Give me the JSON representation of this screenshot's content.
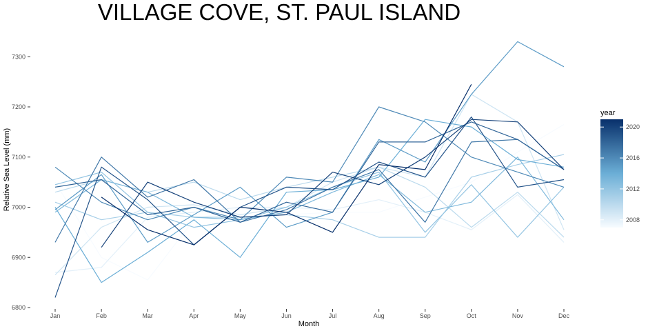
{
  "chart_data": {
    "type": "line",
    "title": "VILLAGE COVE, ST. PAUL ISLAND",
    "xlabel": "Month",
    "ylabel": "Relative Sea Level (mm)",
    "categories": [
      "Jan",
      "Feb",
      "Mar",
      "Apr",
      "May",
      "Jun",
      "Jul",
      "Aug",
      "Sep",
      "Oct",
      "Nov",
      "Dec"
    ],
    "ylim": [
      6800,
      7330
    ],
    "yticks": [
      6800,
      6900,
      7000,
      7100,
      7200,
      7300
    ],
    "grid": false,
    "legend": {
      "title": "year",
      "position": "right",
      "ticks": [
        2008,
        2012,
        2016,
        2020
      ],
      "range": [
        2007,
        2021
      ],
      "color_low": "#f7fbff",
      "color_high": "#08306b"
    },
    "series": [
      {
        "year": 2007,
        "values": [
          7050,
          6900,
          6855,
          6975,
          7000,
          6985,
          6990,
          6990,
          7020,
          7050,
          7110,
          7165
        ]
      },
      {
        "year": 2008,
        "values": [
          6870,
          6880,
          6980,
          6990,
          7000,
          7000,
          6995,
          7015,
          6990,
          6955,
          7025,
          6930
        ]
      },
      {
        "year": 2009,
        "values": [
          6865,
          6960,
          7000,
          7005,
          6985,
          7000,
          7050,
          7080,
          7060,
          7225,
          7170,
          6955
        ]
      },
      {
        "year": 2010,
        "values": [
          7030,
          7055,
          7030,
          7050,
          7015,
          7040,
          7060,
          7080,
          7040,
          6960,
          7030,
          6940
        ]
      },
      {
        "year": 2011,
        "values": [
          7010,
          6975,
          6990,
          6980,
          6980,
          6985,
          6975,
          6940,
          6940,
          7060,
          7085,
          7105
        ]
      },
      {
        "year": 2012,
        "values": [
          7045,
          7070,
          6990,
          6960,
          6975,
          7000,
          7040,
          7070,
          6950,
          7045,
          6940,
          7040
        ]
      },
      {
        "year": 2013,
        "values": [
          6990,
          7055,
          7030,
          6980,
          6975,
          6990,
          7030,
          7065,
          6990,
          7010,
          7100,
          6975
        ]
      },
      {
        "year": 2014,
        "values": [
          7000,
          6850,
          6910,
          6975,
          6900,
          7030,
          7035,
          7060,
          7175,
          7160,
          7095,
          7080
        ]
      },
      {
        "year": 2015,
        "values": [
          6995,
          7065,
          6930,
          6985,
          7040,
          6960,
          6990,
          7135,
          7090,
          7225,
          7330,
          7280
        ]
      },
      {
        "year": 2016,
        "values": [
          7080,
          7010,
          6975,
          7000,
          6975,
          7060,
          7050,
          7200,
          7170,
          7100,
          7070,
          7040
        ]
      },
      {
        "year": 2017,
        "values": [
          6930,
          7100,
          7020,
          7055,
          6970,
          6995,
          7040,
          7075,
          6970,
          7130,
          7135,
          7075
        ]
      },
      {
        "year": 2018,
        "values": [
          7040,
          7055,
          6985,
          7000,
          6970,
          7010,
          6990,
          7130,
          7130,
          7170,
          7135,
          7075
        ]
      },
      {
        "year": 2019,
        "values": [
          6820,
          7080,
          7015,
          6925,
          7000,
          7040,
          7035,
          7090,
          7060,
          7180,
          7040,
          7055
        ]
      },
      {
        "year": 2020,
        "values": [
          null,
          6920,
          7050,
          7010,
          6980,
          6985,
          7070,
          7045,
          7100,
          7175,
          7170,
          7075
        ]
      },
      {
        "year": 2021,
        "values": [
          null,
          7020,
          6955,
          6925,
          7000,
          6990,
          6950,
          7085,
          7075,
          7245,
          null,
          null
        ]
      }
    ]
  }
}
